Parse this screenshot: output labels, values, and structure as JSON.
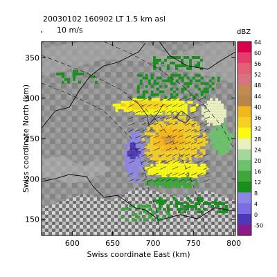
{
  "header": {
    "title_line": "20030102 160902 LT    1.5 km asl",
    "arrow_legend": "10 m/s"
  },
  "map": {
    "x_axis_label": "Swiss coordinate East (km)",
    "y_axis_label": "Swiss coordinate North (km)",
    "x_range_km": [
      562,
      802
    ],
    "y_range_km": [
      130,
      370
    ],
    "x_ticks": [
      "600",
      "650",
      "700",
      "750",
      "800"
    ],
    "y_ticks": [
      "150",
      "200",
      "250",
      "300",
      "350"
    ],
    "x_tick_values": [
      600,
      650,
      700,
      750,
      800
    ],
    "y_tick_values": [
      150,
      200,
      250,
      300,
      350
    ],
    "terrain_color": "#8c8c8c"
  },
  "colorbar": {
    "unit": "dBZ",
    "entries": [
      {
        "label": "64",
        "color": "#d7004e"
      },
      {
        "label": "60",
        "color": "#e23d6b"
      },
      {
        "label": "56",
        "color": "#e26076"
      },
      {
        "label": "52",
        "color": "#d67482"
      },
      {
        "label": "48",
        "color": "#c48a54"
      },
      {
        "label": "44",
        "color": "#b8864a"
      },
      {
        "label": "40",
        "color": "#f3b61c"
      },
      {
        "label": "36",
        "color": "#f6cf23"
      },
      {
        "label": "32",
        "color": "#fbfb10"
      },
      {
        "label": "28",
        "color": "#e9f0bd"
      },
      {
        "label": "24",
        "color": "#a5d79a"
      },
      {
        "label": "20",
        "color": "#6cc26a"
      },
      {
        "label": "16",
        "color": "#3fa63e"
      },
      {
        "label": "12",
        "color": "#198f1e"
      },
      {
        "label": "8",
        "color": "#8e86e6"
      },
      {
        "label": "4",
        "color": "#7a6de0"
      },
      {
        "label": "0",
        "color": "#4e38b5"
      },
      {
        "label": "-50",
        "color": "#8b1a8c"
      }
    ]
  },
  "echo_regions": [
    {
      "name": "main-cell",
      "x_range": [
        686,
        768
      ],
      "y_range": [
        215,
        278
      ],
      "color": "#f6cf23"
    },
    {
      "name": "main-core",
      "x_range": [
        700,
        740
      ],
      "y_range": [
        233,
        265
      ],
      "color": "#f3b61c"
    },
    {
      "name": "main-core-peak",
      "x_range": [
        710,
        728
      ],
      "y_range": [
        242,
        256
      ],
      "color": "#d49842"
    },
    {
      "name": "north-band",
      "x_range": [
        650,
        760
      ],
      "y_range": [
        278,
        300
      ],
      "color": "#fbfb10"
    },
    {
      "name": "north-band-core",
      "x_range": [
        660,
        720
      ],
      "y_range": [
        284,
        296
      ],
      "color": "#f6cf23"
    },
    {
      "name": "east-cell",
      "x_range": [
        760,
        790
      ],
      "y_range": [
        262,
        300
      ],
      "color": "#e9f0bd"
    },
    {
      "name": "east-cell-edge",
      "x_range": [
        770,
        800
      ],
      "y_range": [
        230,
        270
      ],
      "color": "#6cc26a"
    },
    {
      "name": "west-edge",
      "x_range": [
        665,
        690
      ],
      "y_range": [
        195,
        260
      ],
      "color": "#8e86e6"
    },
    {
      "name": "west-edge-purple",
      "x_range": [
        668,
        684
      ],
      "y_range": [
        225,
        245
      ],
      "color": "#4e38b5"
    },
    {
      "name": "south-band",
      "x_range": [
        690,
        770
      ],
      "y_range": [
        200,
        222
      ],
      "color": "#fbfb10"
    },
    {
      "name": "south-band-green",
      "x_range": [
        690,
        760
      ],
      "y_range": [
        188,
        202
      ],
      "color": "#3fa63e"
    },
    {
      "name": "north-speckle",
      "x_range": [
        680,
        780
      ],
      "y_range": [
        300,
        330
      ],
      "color": "#198f1e"
    },
    {
      "name": "nw-speckle",
      "x_range": [
        580,
        630
      ],
      "y_range": [
        320,
        335
      ],
      "color": "#198f1e"
    },
    {
      "name": "top-speckle",
      "x_range": [
        700,
        760
      ],
      "y_range": [
        336,
        352
      ],
      "color": "#198f1e"
    },
    {
      "name": "south-east-speckle",
      "x_range": [
        700,
        790
      ],
      "y_range": [
        160,
        178
      ],
      "color": "#198f1e"
    },
    {
      "name": "south-speckle",
      "x_range": [
        660,
        720
      ],
      "y_range": [
        150,
        168
      ],
      "color": "#3fa63e"
    }
  ]
}
